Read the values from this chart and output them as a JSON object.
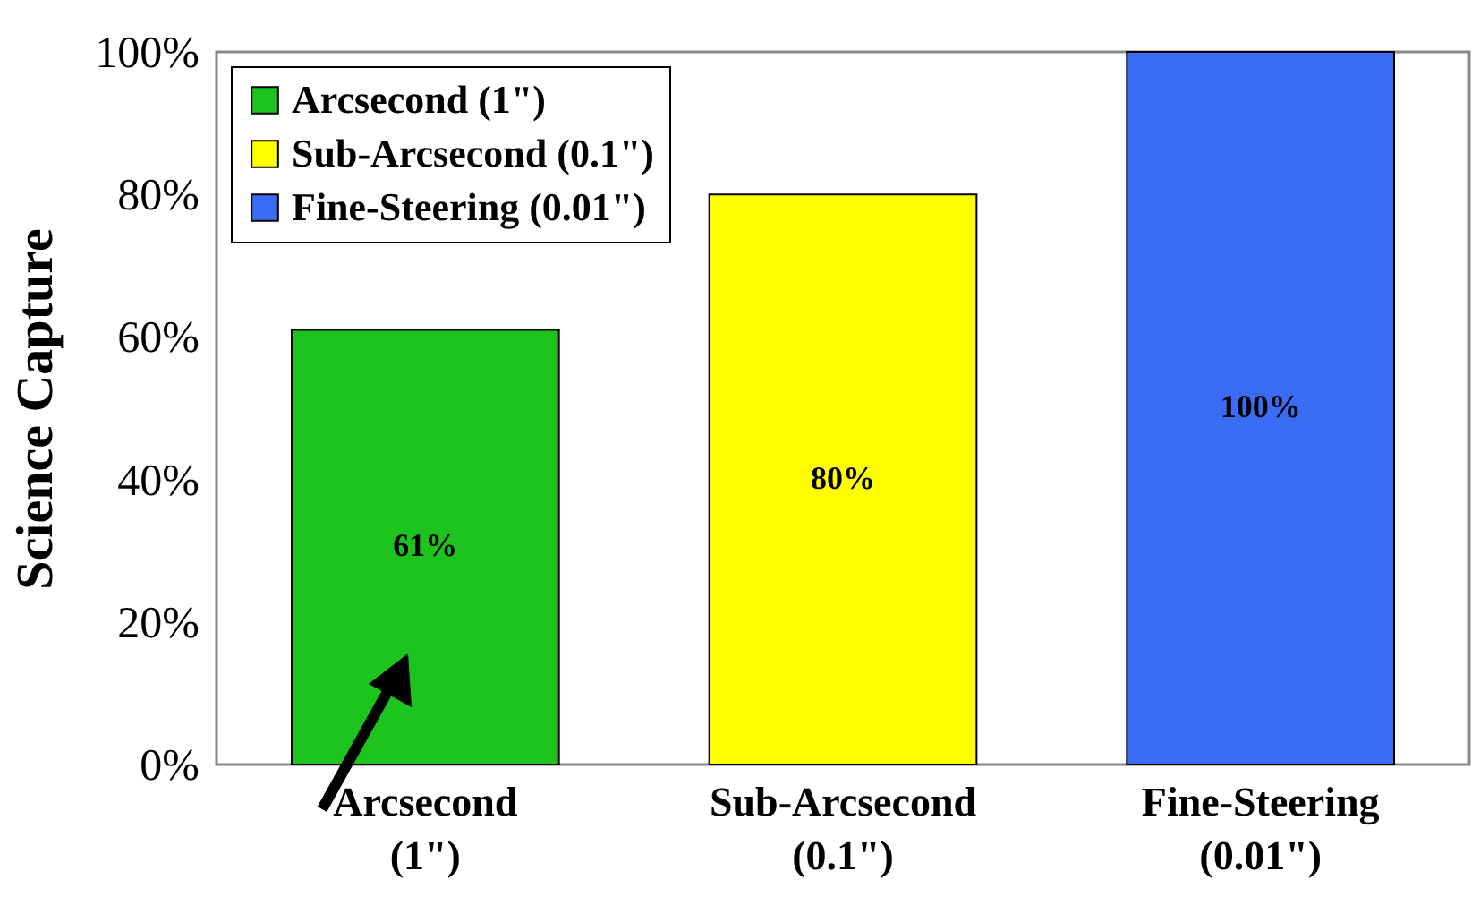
{
  "chart_data": {
    "type": "bar",
    "ylabel": "Science Capture",
    "categories": [
      "Arcsecond (1\")",
      "Sub-Arcsecond (0.1\")",
      "Fine-Steering (0.01\")"
    ],
    "series": [
      {
        "name": "Arcsecond (1\")",
        "color": "#1ec41e",
        "values": [
          61,
          null,
          null
        ],
        "value_labels": [
          "61%",
          null,
          null
        ]
      },
      {
        "name": "Sub-Arcsecond (0.1\")",
        "color": "#ffff00",
        "values": [
          null,
          80,
          null
        ],
        "value_labels": [
          null,
          "80%",
          null
        ]
      },
      {
        "name": "Fine-Steering (0.01\")",
        "color": "#3b6cf5",
        "values": [
          null,
          null,
          100
        ],
        "value_labels": [
          null,
          null,
          "100%"
        ]
      }
    ],
    "ylim": [
      0,
      100
    ],
    "yticks": [
      {
        "value": 0,
        "label": "0%"
      },
      {
        "value": 20,
        "label": "20%"
      },
      {
        "value": 40,
        "label": "40%"
      },
      {
        "value": 60,
        "label": "60%"
      },
      {
        "value": 80,
        "label": "80%"
      },
      {
        "value": 100,
        "label": "100%"
      }
    ],
    "grid": false,
    "legend": "top left"
  }
}
